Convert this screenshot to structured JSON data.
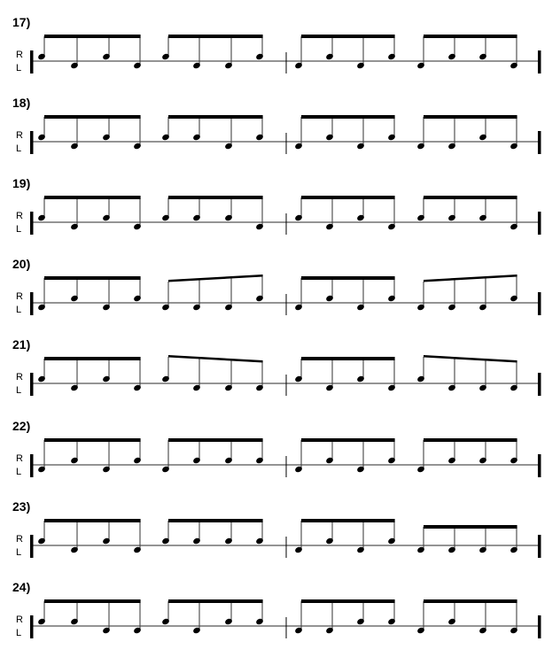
{
  "hand_labels": {
    "right": "R",
    "left": "L"
  },
  "exercises": [
    {
      "number": "17)",
      "sticking": [
        "RLRL",
        "RLLR",
        "LRLR",
        "LRRL"
      ],
      "beams": [
        "flat",
        "flat",
        "flat",
        "flat"
      ]
    },
    {
      "number": "18)",
      "sticking": [
        "RLRL",
        "RRLR",
        "LRLR",
        "LLRL"
      ],
      "beams": [
        "flat",
        "flat",
        "flat",
        "flat"
      ]
    },
    {
      "number": "19)",
      "sticking": [
        "RLRL",
        "RRRL",
        "RLRL",
        "RRRL"
      ],
      "beams": [
        "flat",
        "flat",
        "flat",
        "flat"
      ]
    },
    {
      "number": "20)",
      "sticking": [
        "LRLR",
        "LLLR",
        "LRLR",
        "LLLR"
      ],
      "beams": [
        "flat",
        "slant-up",
        "flat",
        "slant-up"
      ]
    },
    {
      "number": "21)",
      "sticking": [
        "RLRL",
        "RLLL",
        "RLRL",
        "RLLL"
      ],
      "beams": [
        "flat",
        "slant-down",
        "flat",
        "slant-down"
      ]
    },
    {
      "number": "22)",
      "sticking": [
        "LRLR",
        "LRRR",
        "LRLR",
        "LRRR"
      ],
      "beams": [
        "flat",
        "flat",
        "flat",
        "flat"
      ]
    },
    {
      "number": "23)",
      "sticking": [
        "RLRL",
        "RRRR",
        "LRLR",
        "LLLL"
      ],
      "beams": [
        "flat",
        "flat",
        "flat",
        "low"
      ]
    },
    {
      "number": "24)",
      "sticking": [
        "RRLL",
        "RLRR",
        "LLRR",
        "LRLL"
      ],
      "beams": [
        "flat",
        "flat",
        "flat",
        "flat"
      ]
    }
  ]
}
